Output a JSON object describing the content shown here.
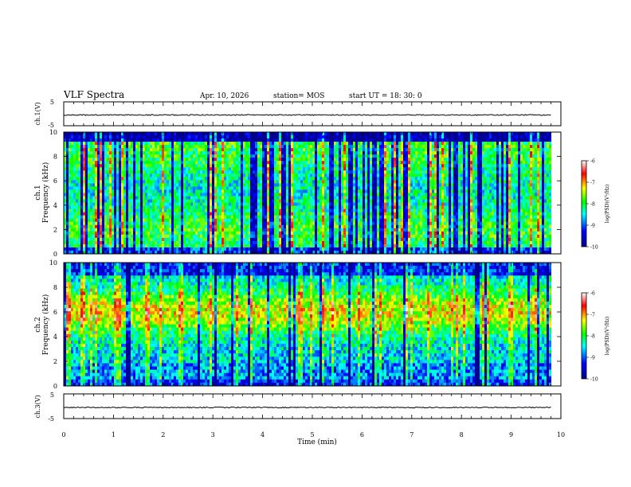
{
  "header": {
    "title": "VLF Spectra",
    "date": "Apr. 10, 2026",
    "station": "station= MOS",
    "start": "start  UT =   18: 30: 0"
  },
  "chart_data": [
    {
      "type": "line",
      "name_label": "ch.1(V)",
      "ylabel": "ch.1(V)",
      "ylim": [
        -5,
        5
      ],
      "yticks": [
        "5",
        "-5"
      ],
      "xlim": [
        0,
        10
      ],
      "trace_level": -0.5,
      "description_values": {
        "x_end_min": 9.8
      }
    },
    {
      "type": "heatmap",
      "ylabel": "ch.1\nFrequency (kHz)",
      "ylabel_top": "ch.1",
      "ylabel_bottom": "Frequency (kHz)",
      "ylim": [
        0,
        10
      ],
      "yticks": [
        "0",
        "2",
        "4",
        "6",
        "8",
        "10"
      ],
      "xlim": [
        0,
        9.8
      ],
      "colorbar": {
        "min": -10,
        "max": -6,
        "ticks": [
          "-6",
          "-7",
          "-8",
          "-9",
          "-10"
        ],
        "label": "log(PSD)(V²/Hz)"
      },
      "pattern": "broadband impulsive bursts 0–10 kHz, elevated below 2 kHz and near 8–10 kHz"
    },
    {
      "type": "heatmap",
      "ylabel": "ch.2\nFrequency (kHz)",
      "ylabel_top": "ch.2",
      "ylabel_bottom": "Frequency (kHz)",
      "ylim": [
        0,
        10
      ],
      "yticks": [
        "0",
        "2",
        "4",
        "6",
        "8",
        "10"
      ],
      "xlim": [
        0,
        9.8
      ],
      "colorbar": {
        "min": -10,
        "max": -6,
        "ticks": [
          "-6",
          "-7",
          "-8",
          "-9",
          "-10"
        ],
        "label": "log(PSD)(V²/Hz)"
      },
      "pattern": "strongest power 4–8 kHz (red), weaker near 0–2 kHz and above 9 kHz"
    },
    {
      "type": "line",
      "ylabel": "ch.3(V)",
      "ylim": [
        -5,
        5
      ],
      "yticks": [
        "5",
        "-5"
      ],
      "xlim": [
        0,
        10
      ],
      "trace_level": -0.5
    }
  ],
  "xaxis": {
    "label": "Time  (min)",
    "ticks": [
      "0",
      "1",
      "2",
      "3",
      "4",
      "5",
      "6",
      "7",
      "8",
      "9",
      "10"
    ],
    "range": [
      0,
      10
    ]
  },
  "colors": {
    "cmap": [
      "#00008f",
      "#0000ff",
      "#00ffff",
      "#00ff00",
      "#ffff00",
      "#ff0000",
      "#ffffff"
    ],
    "trace": "#000000"
  }
}
